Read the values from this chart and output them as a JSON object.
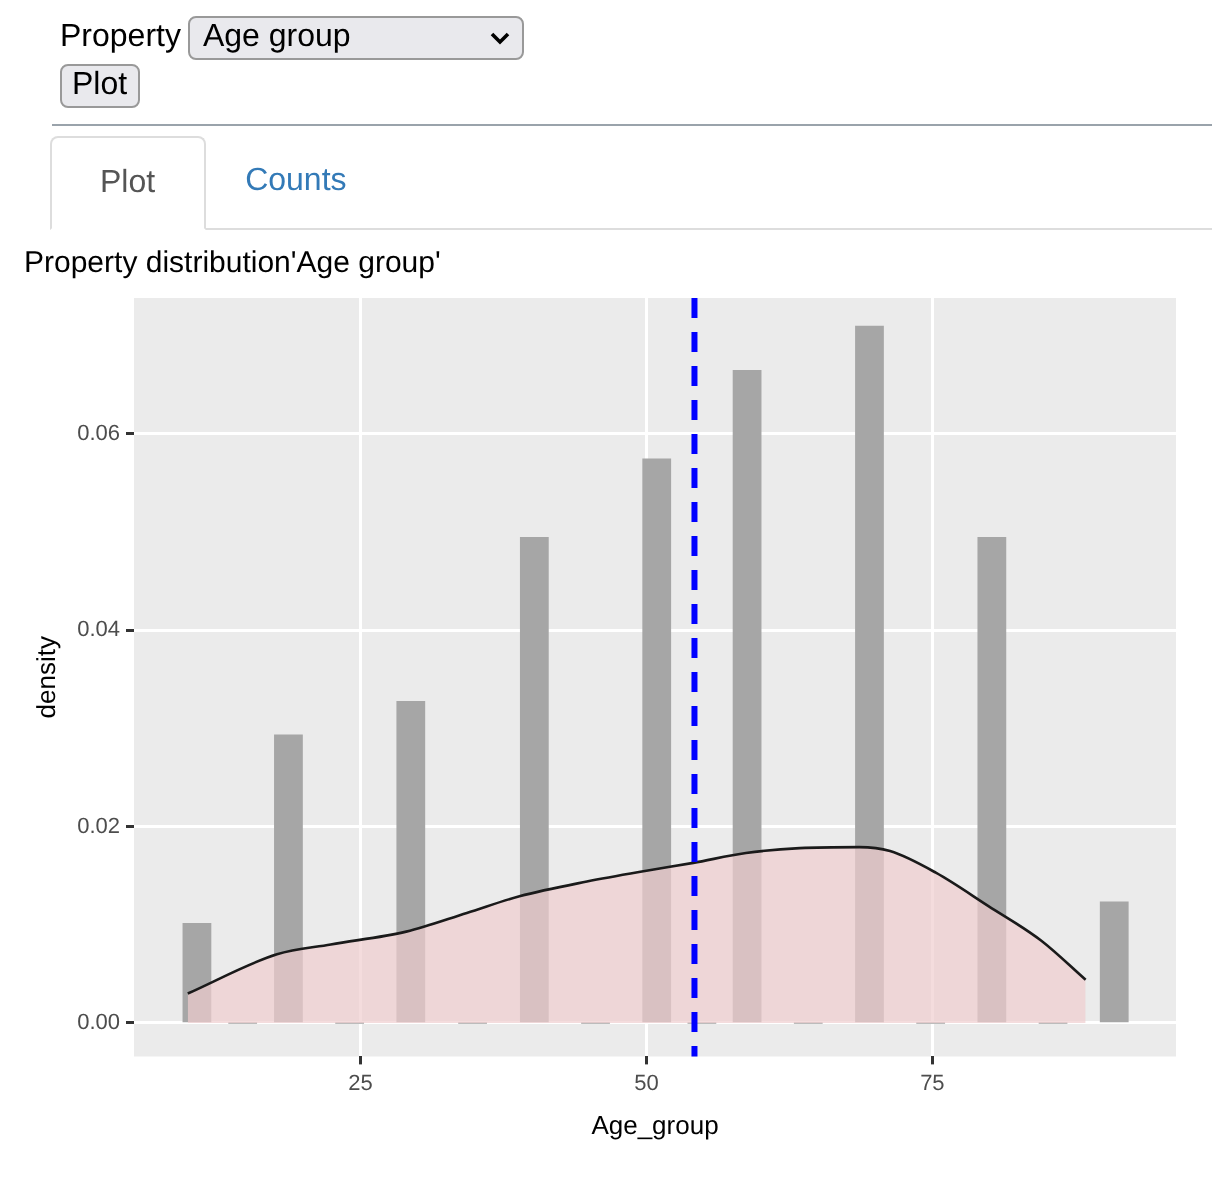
{
  "chart_data": {
    "type": "histogram",
    "title": "Property distribution'Age group'",
    "xlabel": "Age_group",
    "ylabel": "density",
    "annotations": [
      "Property",
      "Age group",
      "Plot",
      "Plot",
      "Counts"
    ],
    "series": [
      {
        "color": "#a6a6a6",
        "bins": [
          9.5,
          11.9,
          17.5,
          19.9,
          28.2,
          30.6,
          39.0,
          41.4,
          49.7,
          52.1,
          57.6,
          60.0,
          68.3,
          70.7,
          79.0,
          81.4,
          89.7,
          92.1
        ],
        "values": [
          0.0101,
          0,
          0.0293,
          0,
          0.0327,
          0,
          0.0494,
          0,
          0.0574,
          0,
          0.0664,
          0,
          0.0709,
          0,
          0.0494,
          0,
          0.0123
        ]
      },
      {
        "type": "area",
        "color": "#efcdcf",
        "x": [
          9.9,
          17.7,
          22.4,
          29.0,
          34.3,
          38.9,
          44.8,
          50.0,
          54.1,
          58.7,
          63.4,
          68.6,
          71.3,
          75.3,
          79.9,
          84.5,
          88.4
        ],
        "values": [
          0.003,
          0.007,
          0.008,
          0.0093,
          0.0112,
          0.0129,
          0.0144,
          0.0155,
          0.0163,
          0.0173,
          0.0178,
          0.0179,
          0.0175,
          0.0153,
          0.0119,
          0.0084,
          0.0044
        ]
      }
    ],
    "ref_lines": [
      {
        "axis": "x",
        "value": 54.2,
        "color": "#0000ff",
        "line_style": "dashed"
      }
    ],
    "xlim": [
      5.2,
      96.3
    ],
    "xticks": [
      25,
      50,
      75
    ],
    "ylim": [
      -0.0034,
      0.0738
    ],
    "yticks": [
      {
        "value": 0,
        "label": "0.00"
      },
      0.02,
      0.04,
      0.06
    ],
    "grid": true,
    "legend": false,
    "marker": "none"
  }
}
